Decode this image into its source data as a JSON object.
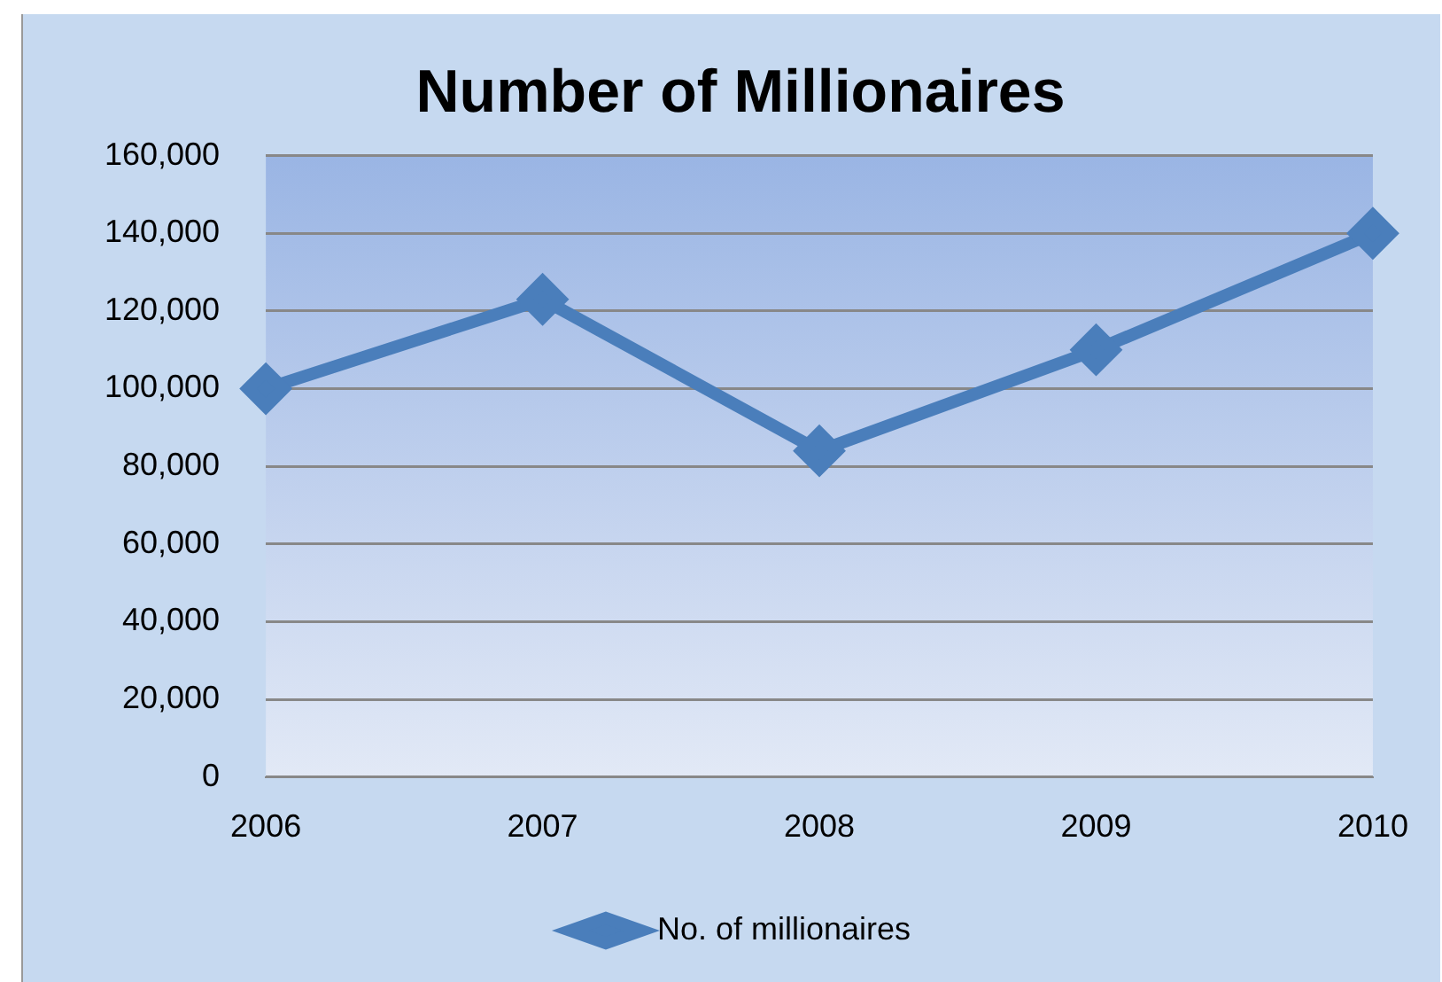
{
  "chart_data": {
    "type": "line",
    "title": "Number of Millionaires",
    "categories": [
      "2006",
      "2007",
      "2008",
      "2009",
      "2010"
    ],
    "series": [
      {
        "name": "No. of millionaires",
        "color": "#4a7ebb",
        "values": [
          100000,
          123000,
          84000,
          110000,
          140000
        ]
      }
    ],
    "ylim": [
      0,
      160000
    ],
    "yticks": [
      0,
      {
        "value": 20000,
        "label": "20,000"
      },
      {
        "value": 40000,
        "label": "40,000"
      },
      {
        "value": 60000,
        "label": "60,000"
      },
      {
        "value": 80000,
        "label": "80,000"
      },
      {
        "value": 100000,
        "label": "100,000"
      },
      {
        "value": 120000,
        "label": "120,000"
      },
      {
        "value": 140000,
        "label": "140,000"
      },
      {
        "value": 160000,
        "label": "160,000"
      }
    ],
    "grid": "y",
    "legend": "bottom",
    "marker": "diamond",
    "line_style": "solid"
  }
}
